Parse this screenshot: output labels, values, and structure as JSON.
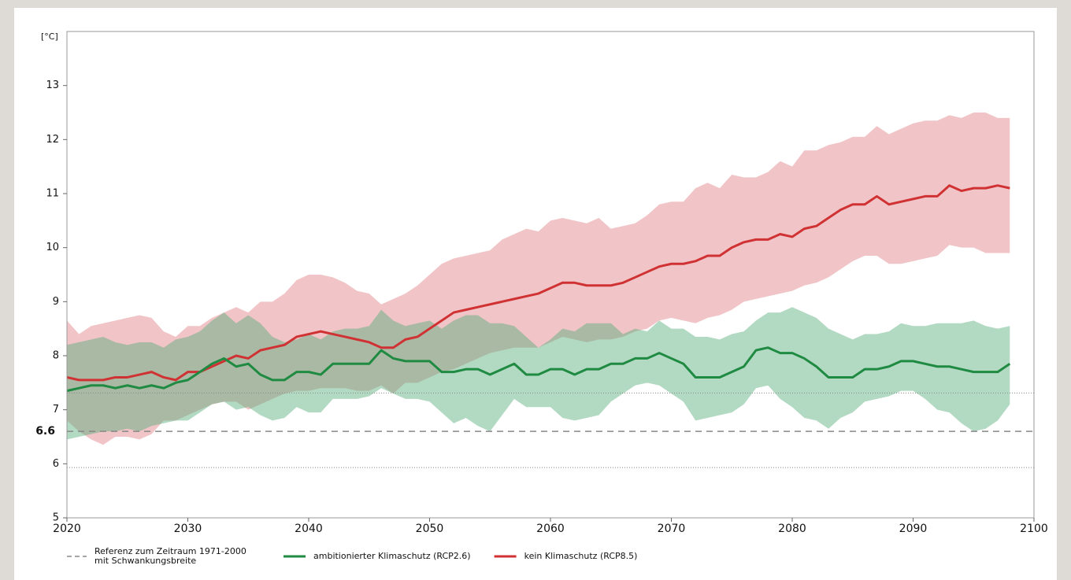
{
  "chart_data": {
    "type": "line",
    "ylabel": "[°C]",
    "xlim": [
      2020,
      2100
    ],
    "xticks": [
      2020,
      2030,
      2040,
      2050,
      2060,
      2070,
      2080,
      2090,
      2100
    ],
    "ylim": [
      5,
      14
    ],
    "yticks": [
      5,
      6,
      7,
      8,
      9,
      10,
      11,
      12,
      13
    ],
    "reference": {
      "name": [
        "Referenz zum Zeitraum 1971-2000",
        "mit Schwankungsbreite"
      ],
      "value": 6.6,
      "band": [
        5.93,
        7.31
      ],
      "color": "#888888"
    },
    "x": [
      2020,
      2021,
      2022,
      2023,
      2024,
      2025,
      2026,
      2027,
      2028,
      2029,
      2030,
      2031,
      2032,
      2033,
      2034,
      2035,
      2036,
      2037,
      2038,
      2039,
      2040,
      2041,
      2042,
      2043,
      2044,
      2045,
      2046,
      2047,
      2048,
      2049,
      2050,
      2051,
      2052,
      2053,
      2054,
      2055,
      2056,
      2057,
      2058,
      2059,
      2060,
      2061,
      2062,
      2063,
      2064,
      2065,
      2066,
      2067,
      2068,
      2069,
      2070,
      2071,
      2072,
      2073,
      2074,
      2075,
      2076,
      2077,
      2078,
      2079,
      2080,
      2081,
      2082,
      2083,
      2084,
      2085,
      2086,
      2087,
      2088,
      2089,
      2090,
      2091,
      2092,
      2093,
      2094,
      2095,
      2096,
      2097,
      2098
    ],
    "series": [
      {
        "name": "kein Klimaschutz (RCP8.5)",
        "color": "#d03234",
        "band_color": "#e07f83",
        "values": [
          7.6,
          7.55,
          7.55,
          7.55,
          7.6,
          7.6,
          7.65,
          7.7,
          7.6,
          7.55,
          7.7,
          7.7,
          7.8,
          7.9,
          8.0,
          7.95,
          8.1,
          8.15,
          8.2,
          8.35,
          8.4,
          8.45,
          8.4,
          8.35,
          8.3,
          8.25,
          8.15,
          8.15,
          8.3,
          8.35,
          8.5,
          8.65,
          8.8,
          8.85,
          8.9,
          8.95,
          9.0,
          9.05,
          9.1,
          9.15,
          9.25,
          9.35,
          9.35,
          9.3,
          9.3,
          9.3,
          9.35,
          9.45,
          9.55,
          9.65,
          9.7,
          9.7,
          9.75,
          9.85,
          9.85,
          10.0,
          10.1,
          10.15,
          10.15,
          10.25,
          10.2,
          10.35,
          10.4,
          10.55,
          10.7,
          10.8,
          10.8,
          10.95,
          10.8,
          10.85,
          10.9,
          10.95,
          10.95,
          11.15,
          11.05,
          11.1,
          11.1,
          11.15,
          11.1
        ],
        "upper": [
          8.65,
          8.4,
          8.55,
          8.6,
          8.65,
          8.7,
          8.75,
          8.7,
          8.45,
          8.35,
          8.55,
          8.55,
          8.7,
          8.8,
          8.9,
          8.8,
          9.0,
          9.0,
          9.15,
          9.4,
          9.5,
          9.5,
          9.45,
          9.35,
          9.2,
          9.15,
          8.95,
          9.05,
          9.15,
          9.3,
          9.5,
          9.7,
          9.8,
          9.85,
          9.9,
          9.95,
          10.15,
          10.25,
          10.35,
          10.3,
          10.5,
          10.55,
          10.5,
          10.45,
          10.55,
          10.35,
          10.4,
          10.45,
          10.6,
          10.8,
          10.85,
          10.85,
          11.1,
          11.2,
          11.1,
          11.35,
          11.3,
          11.3,
          11.4,
          11.6,
          11.5,
          11.8,
          11.8,
          11.9,
          11.95,
          12.05,
          12.05,
          12.25,
          12.1,
          12.2,
          12.3,
          12.35,
          12.35,
          12.45,
          12.4,
          12.5,
          12.5,
          12.4,
          12.4
        ],
        "lower": [
          6.8,
          6.6,
          6.45,
          6.35,
          6.5,
          6.5,
          6.45,
          6.55,
          6.8,
          6.8,
          6.9,
          7.0,
          7.1,
          7.15,
          7.15,
          7.0,
          7.1,
          7.2,
          7.3,
          7.35,
          7.35,
          7.4,
          7.4,
          7.4,
          7.35,
          7.35,
          7.45,
          7.3,
          7.5,
          7.5,
          7.6,
          7.7,
          7.75,
          7.85,
          7.95,
          8.05,
          8.1,
          8.15,
          8.15,
          8.15,
          8.25,
          8.35,
          8.3,
          8.25,
          8.3,
          8.3,
          8.35,
          8.45,
          8.5,
          8.65,
          8.7,
          8.65,
          8.6,
          8.7,
          8.75,
          8.85,
          9.0,
          9.05,
          9.1,
          9.15,
          9.2,
          9.3,
          9.35,
          9.45,
          9.6,
          9.75,
          9.85,
          9.85,
          9.7,
          9.7,
          9.75,
          9.8,
          9.85,
          10.05,
          10.0,
          10.0,
          9.9,
          9.9,
          9.9
        ]
      },
      {
        "name": "ambitionierter Klimaschutz (RCP2.6)",
        "color": "#1f8a42",
        "band_color": "#55aa77",
        "values": [
          7.35,
          7.4,
          7.45,
          7.45,
          7.4,
          7.45,
          7.4,
          7.45,
          7.4,
          7.5,
          7.55,
          7.7,
          7.85,
          7.95,
          7.8,
          7.85,
          7.65,
          7.55,
          7.55,
          7.7,
          7.7,
          7.65,
          7.85,
          7.85,
          7.85,
          7.85,
          8.1,
          7.95,
          7.9,
          7.9,
          7.9,
          7.7,
          7.7,
          7.75,
          7.75,
          7.65,
          7.75,
          7.85,
          7.65,
          7.65,
          7.75,
          7.75,
          7.65,
          7.75,
          7.75,
          7.85,
          7.85,
          7.95,
          7.95,
          8.05,
          7.95,
          7.85,
          7.6,
          7.6,
          7.6,
          7.7,
          7.8,
          8.1,
          8.15,
          8.05,
          8.05,
          7.95,
          7.8,
          7.6,
          7.6,
          7.6,
          7.75,
          7.75,
          7.8,
          7.9,
          7.9,
          7.85,
          7.8,
          7.8,
          7.75,
          7.7,
          7.7,
          7.7,
          7.85
        ],
        "upper": [
          8.2,
          8.25,
          8.3,
          8.35,
          8.25,
          8.2,
          8.25,
          8.25,
          8.15,
          8.3,
          8.35,
          8.45,
          8.65,
          8.8,
          8.6,
          8.75,
          8.6,
          8.35,
          8.25,
          8.3,
          8.4,
          8.3,
          8.45,
          8.5,
          8.5,
          8.55,
          8.85,
          8.65,
          8.55,
          8.6,
          8.65,
          8.5,
          8.65,
          8.75,
          8.75,
          8.6,
          8.6,
          8.55,
          8.35,
          8.15,
          8.3,
          8.5,
          8.45,
          8.6,
          8.6,
          8.6,
          8.4,
          8.5,
          8.45,
          8.65,
          8.5,
          8.5,
          8.35,
          8.35,
          8.3,
          8.4,
          8.45,
          8.65,
          8.8,
          8.8,
          8.9,
          8.8,
          8.7,
          8.5,
          8.4,
          8.3,
          8.4,
          8.4,
          8.45,
          8.6,
          8.55,
          8.55,
          8.6,
          8.6,
          8.6,
          8.65,
          8.55,
          8.5,
          8.55
        ],
        "lower": [
          6.45,
          6.5,
          6.55,
          6.6,
          6.6,
          6.65,
          6.6,
          6.7,
          6.75,
          6.8,
          6.8,
          6.95,
          7.1,
          7.15,
          7.0,
          7.05,
          6.9,
          6.8,
          6.85,
          7.05,
          6.95,
          6.95,
          7.2,
          7.2,
          7.2,
          7.25,
          7.4,
          7.3,
          7.2,
          7.2,
          7.15,
          6.95,
          6.75,
          6.85,
          6.7,
          6.6,
          6.9,
          7.2,
          7.05,
          7.05,
          7.05,
          6.85,
          6.8,
          6.85,
          6.9,
          7.15,
          7.3,
          7.45,
          7.5,
          7.45,
          7.3,
          7.15,
          6.8,
          6.85,
          6.9,
          6.95,
          7.1,
          7.4,
          7.45,
          7.2,
          7.05,
          6.85,
          6.8,
          6.65,
          6.85,
          6.95,
          7.15,
          7.2,
          7.25,
          7.35,
          7.35,
          7.2,
          7.0,
          6.95,
          6.75,
          6.6,
          6.65,
          6.8,
          7.1
        ]
      }
    ],
    "legend_order": [
      1,
      0
    ]
  }
}
